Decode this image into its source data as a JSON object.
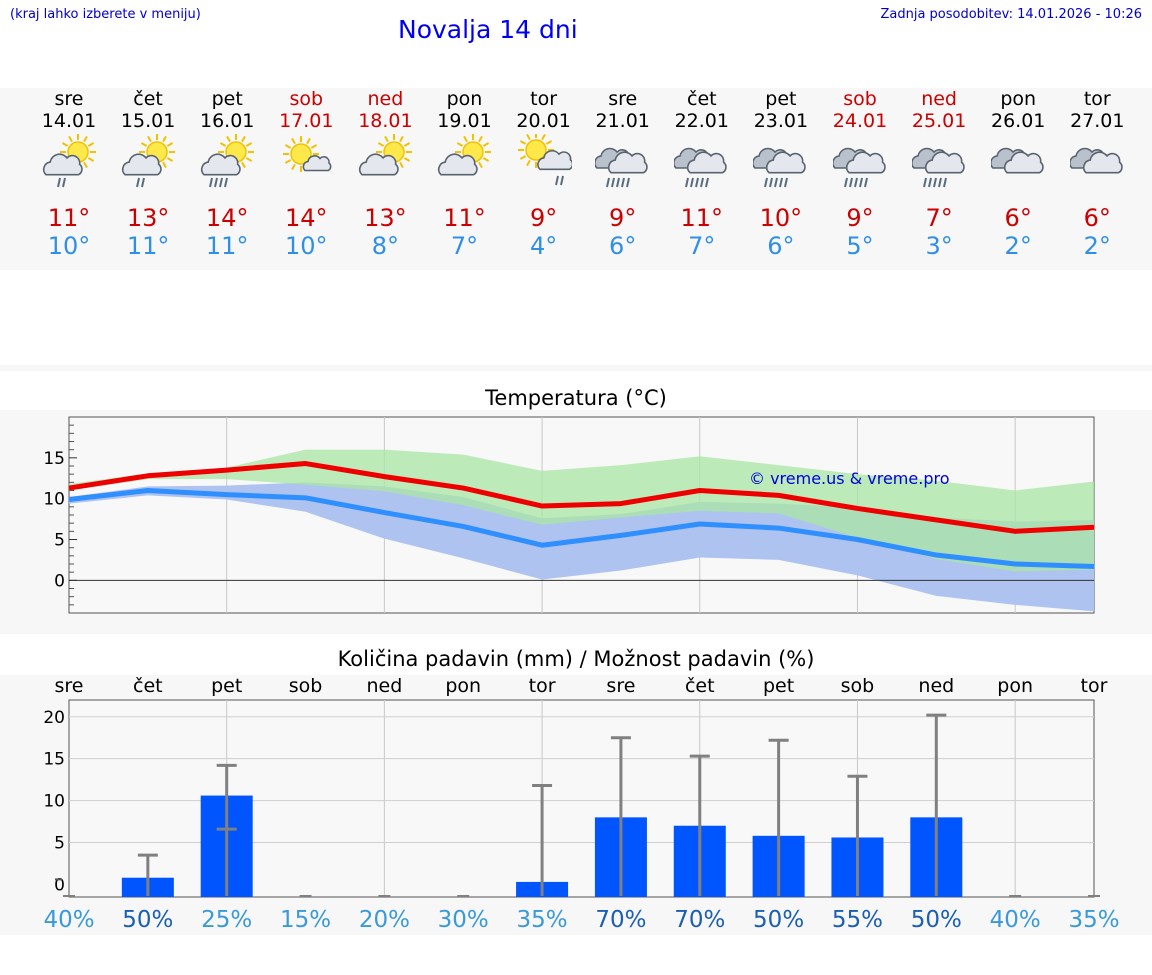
{
  "header": {
    "hint": "(kraj lahko izberete v meniju)",
    "title": "Novalja 14 dni",
    "updated": "Zadnja posodobitev: 14.01.2026 - 10:26"
  },
  "days": [
    {
      "name": "sre",
      "date": "14.01",
      "tmax": "11°",
      "tmin": "10°",
      "icon": "sun-cloud-light-rain-icon",
      "weekend": false
    },
    {
      "name": "čet",
      "date": "15.01",
      "tmax": "13°",
      "tmin": "11°",
      "icon": "sun-cloud-light-rain-icon",
      "weekend": false
    },
    {
      "name": "pet",
      "date": "16.01",
      "tmax": "14°",
      "tmin": "11°",
      "icon": "sun-cloud-rain-icon",
      "weekend": false
    },
    {
      "name": "sob",
      "date": "17.01",
      "tmax": "14°",
      "tmin": "10°",
      "icon": "sun-small-cloud-icon",
      "weekend": true
    },
    {
      "name": "ned",
      "date": "18.01",
      "tmax": "13°",
      "tmin": "8°",
      "icon": "sun-cloud-icon",
      "weekend": true
    },
    {
      "name": "pon",
      "date": "19.01",
      "tmax": "11°",
      "tmin": "7°",
      "icon": "sun-cloud-icon",
      "weekend": false
    },
    {
      "name": "tor",
      "date": "20.01",
      "tmax": "9°",
      "tmin": "4°",
      "icon": "sun-cloud-drizzle-icon",
      "weekend": false
    },
    {
      "name": "sre",
      "date": "21.01",
      "tmax": "9°",
      "tmin": "6°",
      "icon": "cloud-rain-icon",
      "weekend": false
    },
    {
      "name": "čet",
      "date": "22.01",
      "tmax": "11°",
      "tmin": "7°",
      "icon": "cloud-rain-icon",
      "weekend": false
    },
    {
      "name": "pet",
      "date": "23.01",
      "tmax": "10°",
      "tmin": "6°",
      "icon": "cloud-rain-icon",
      "weekend": false
    },
    {
      "name": "sob",
      "date": "24.01",
      "tmax": "9°",
      "tmin": "5°",
      "icon": "cloud-rain-icon",
      "weekend": true
    },
    {
      "name": "ned",
      "date": "25.01",
      "tmax": "7°",
      "tmin": "3°",
      "icon": "cloud-rain-icon",
      "weekend": true
    },
    {
      "name": "pon",
      "date": "26.01",
      "tmax": "6°",
      "tmin": "2°",
      "icon": "cloud-icon",
      "weekend": false
    },
    {
      "name": "tor",
      "date": "27.01",
      "tmax": "6°",
      "tmin": "2°",
      "icon": "cloud-icon",
      "weekend": false
    }
  ],
  "colors": {
    "max_line": "#ee0000",
    "min_line": "#2f8fff",
    "max_band": "#a9e6a4",
    "min_band": "#aec3f0",
    "overlap_band": "#78bfa0",
    "bar": "#0055ff",
    "error_bar": "#808080",
    "weekday_text": "#000000",
    "weekend_text": "#cc0000",
    "pct_high": "#1a5fb4",
    "pct_low": "#3a9ad9"
  },
  "chart_data": [
    {
      "type": "line",
      "title": "Temperatura (°C)",
      "watermark": "© vreme.us & vreme.pro",
      "ylim": [
        -4,
        20
      ],
      "yticks": [
        0,
        5,
        10,
        15
      ],
      "x": [
        0,
        1,
        2,
        3,
        4,
        5,
        6,
        7,
        8,
        9,
        10,
        11,
        12,
        13
      ],
      "series": [
        {
          "name": "max",
          "values": [
            11.3,
            12.8,
            13.5,
            14.3,
            12.7,
            11.3,
            9.1,
            9.4,
            11.0,
            10.4,
            8.8,
            7.4,
            6.0,
            6.5
          ]
        },
        {
          "name": "min",
          "values": [
            9.9,
            11.0,
            10.5,
            10.1,
            8.3,
            6.6,
            4.3,
            5.5,
            6.9,
            6.4,
            5.0,
            3.1,
            2.0,
            1.7
          ]
        }
      ],
      "max_band": {
        "upper": [
          11.8,
          13.1,
          13.8,
          16.0,
          16.0,
          15.4,
          13.4,
          14.1,
          15.2,
          14.1,
          13.0,
          12.2,
          11.0,
          12.1
        ],
        "lower": [
          11.0,
          12.4,
          12.4,
          11.7,
          10.9,
          9.2,
          6.8,
          7.7,
          8.5,
          8.2,
          5.2,
          2.6,
          1.1,
          1.3
        ]
      },
      "min_band": {
        "upper": [
          10.2,
          11.5,
          11.6,
          12.0,
          11.5,
          10.2,
          7.6,
          8.1,
          9.6,
          9.4,
          8.9,
          7.7,
          7.2,
          7.4
        ],
        "lower": [
          9.4,
          10.4,
          9.9,
          8.4,
          5.1,
          2.7,
          0.1,
          1.2,
          2.8,
          2.5,
          0.6,
          -1.9,
          -3.0,
          -3.8
        ]
      }
    },
    {
      "type": "bar",
      "title": "Količina padavin (mm) / Možnost padavin (%)",
      "categories": [
        "sre",
        "čet",
        "pet",
        "sob",
        "ned",
        "pon",
        "tor",
        "sre",
        "čet",
        "pet",
        "sob",
        "ned",
        "pon",
        "tor"
      ],
      "ylim": [
        -1.5,
        22
      ],
      "yticks": [
        0,
        5,
        10,
        15,
        20
      ],
      "ytick_labels": [
        "0",
        "5",
        "10",
        "15",
        "20"
      ],
      "values": [
        0,
        0.8,
        10.6,
        0,
        0,
        0,
        0.3,
        8.0,
        7.0,
        5.8,
        5.6,
        8.0,
        0,
        0
      ],
      "err_low": [
        0,
        0,
        6.6,
        0,
        0,
        0,
        0,
        0,
        0,
        0,
        0,
        0,
        0,
        0
      ],
      "err_high": [
        0,
        3.5,
        14.2,
        0,
        0,
        0,
        11.8,
        17.5,
        15.3,
        17.2,
        12.9,
        20.2,
        0,
        0
      ],
      "probability": [
        "40%",
        "50%",
        "25%",
        "15%",
        "20%",
        "30%",
        "35%",
        "70%",
        "70%",
        "50%",
        "55%",
        "50%",
        "40%",
        "35%"
      ]
    }
  ]
}
